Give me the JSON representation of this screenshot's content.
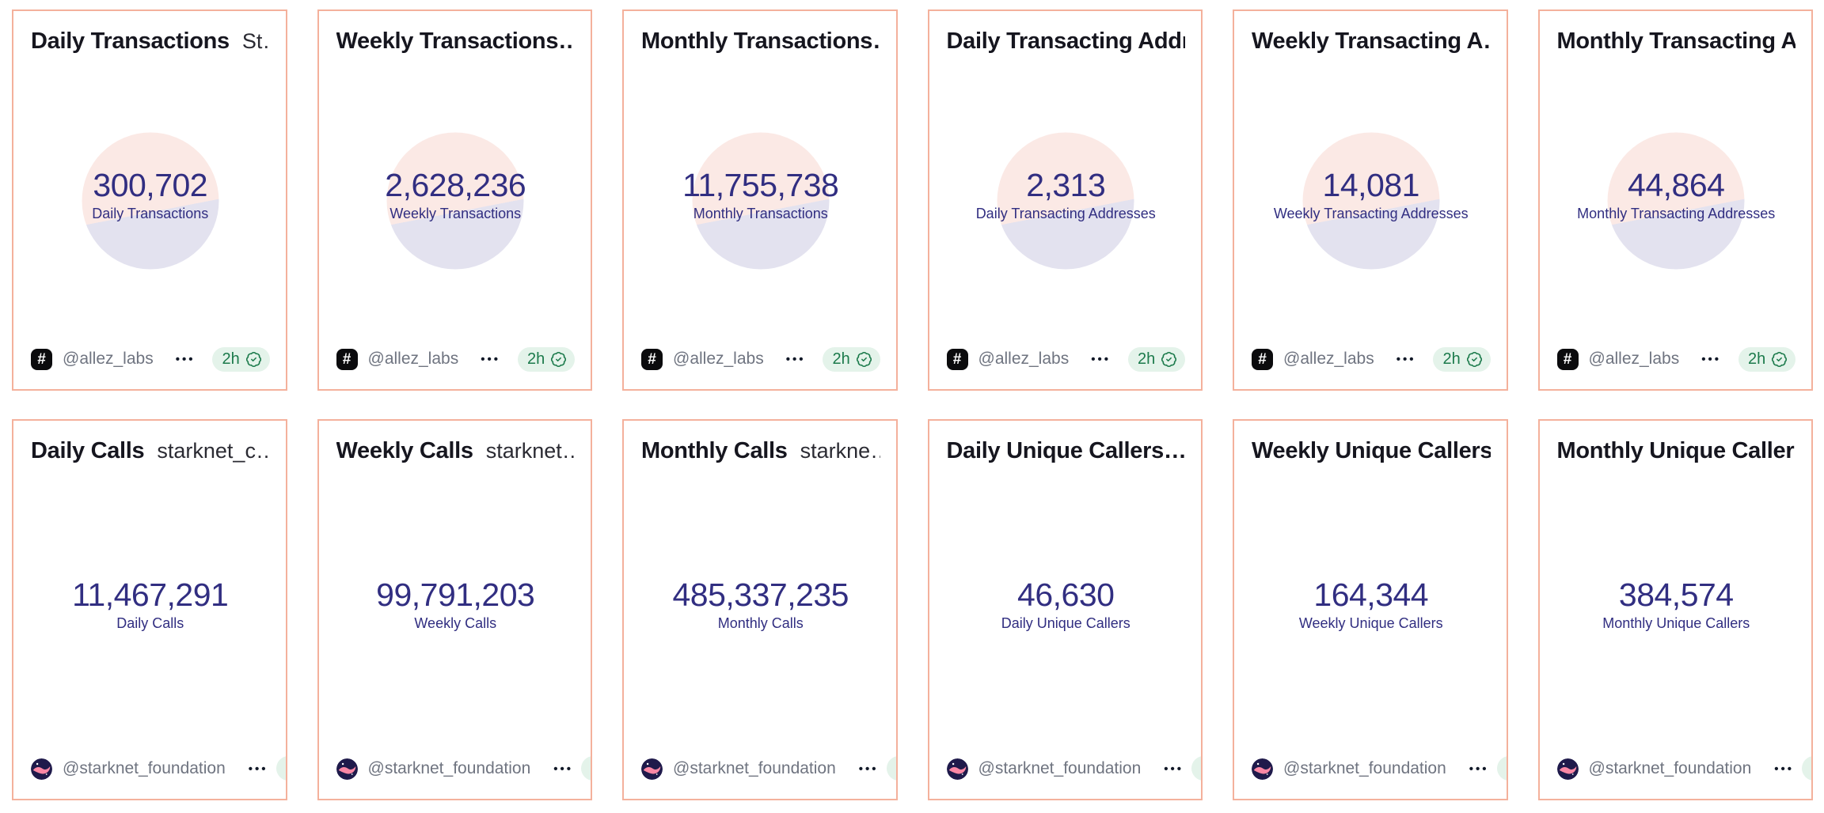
{
  "theme": {
    "card_border": "#f4b19c",
    "accent_navy": "#312e81",
    "pie_pink": "#fbe9e5",
    "pie_lavender": "#e3e2ef",
    "badge_bg": "#e4f3ea",
    "badge_green": "#1b7a4b",
    "author_gray": "#6f7480"
  },
  "menu_dots": "•••",
  "cards": [
    {
      "title": "Daily Transactions",
      "subtitle": "St…",
      "value": "300,702",
      "label": "Daily Transactions",
      "author": "@allez_labs",
      "avatar": "allez",
      "badge": "2h",
      "badge_clipped": false,
      "pie": true
    },
    {
      "title": "Weekly Transactions…",
      "subtitle": "",
      "value": "2,628,236",
      "label": "Weekly Transactions",
      "author": "@allez_labs",
      "avatar": "allez",
      "badge": "2h",
      "badge_clipped": false,
      "pie": true
    },
    {
      "title": "Monthly Transactions…",
      "subtitle": "",
      "value": "11,755,738",
      "label": "Monthly Transactions",
      "author": "@allez_labs",
      "avatar": "allez",
      "badge": "2h",
      "badge_clipped": false,
      "pie": true
    },
    {
      "title": "Daily Transacting Addr…",
      "subtitle": "",
      "value": "2,313",
      "label": "Daily Transacting Addresses",
      "author": "@allez_labs",
      "avatar": "allez",
      "badge": "2h",
      "badge_clipped": false,
      "pie": true
    },
    {
      "title": "Weekly Transacting A…",
      "subtitle": "",
      "value": "14,081",
      "label": "Weekly Transacting Addresses",
      "author": "@allez_labs",
      "avatar": "allez",
      "badge": "2h",
      "badge_clipped": false,
      "pie": true
    },
    {
      "title": "Monthly Transacting A…",
      "subtitle": "",
      "value": "44,864",
      "label": "Monthly Transacting Addresses",
      "author": "@allez_labs",
      "avatar": "allez",
      "badge": "2h",
      "badge_clipped": false,
      "pie": true
    },
    {
      "title": "Daily Calls",
      "subtitle": "starknet_c…",
      "value": "11,467,291",
      "label": "Daily Calls",
      "author": "@starknet_foundation",
      "avatar": "starknet",
      "badge": "",
      "badge_clipped": true,
      "pie": false
    },
    {
      "title": "Weekly Calls",
      "subtitle": "starknet…",
      "value": "99,791,203",
      "label": "Weekly Calls",
      "author": "@starknet_foundation",
      "avatar": "starknet",
      "badge": "",
      "badge_clipped": true,
      "pie": false
    },
    {
      "title": "Monthly Calls",
      "subtitle": "starkne…",
      "value": "485,337,235",
      "label": "Monthly Calls",
      "author": "@starknet_foundation",
      "avatar": "starknet",
      "badge": "",
      "badge_clipped": true,
      "pie": false
    },
    {
      "title": "Daily Unique Callers…",
      "subtitle": "",
      "value": "46,630",
      "label": "Daily Unique Callers",
      "author": "@starknet_foundation",
      "avatar": "starknet",
      "badge": "",
      "badge_clipped": true,
      "pie": false
    },
    {
      "title": "Weekly Unique Callers…",
      "subtitle": "",
      "value": "164,344",
      "label": "Weekly Unique Callers",
      "author": "@starknet_foundation",
      "avatar": "starknet",
      "badge": "",
      "badge_clipped": true,
      "pie": false
    },
    {
      "title": "Monthly Unique Caller…",
      "subtitle": "",
      "value": "384,574",
      "label": "Monthly Unique Callers",
      "author": "@starknet_foundation",
      "avatar": "starknet",
      "badge": "",
      "badge_clipped": true,
      "pie": false
    }
  ]
}
